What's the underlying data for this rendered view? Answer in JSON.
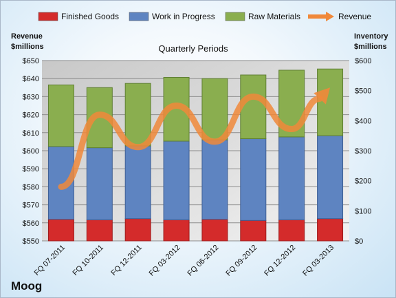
{
  "chart_data": {
    "type": "bar",
    "stacked": true,
    "company": "Moog",
    "subtitle": "Quarterly Periods",
    "categories": [
      "FQ 07-2011",
      "FQ 10-2011",
      "FQ 12-2011",
      "FQ 03-2012",
      "FQ 06-2012",
      "FQ 09-2012",
      "FQ 12-2012",
      "FQ 03-2013"
    ],
    "series": [
      {
        "name": "Finished Goods",
        "axis": "right",
        "color": "#d42b2b",
        "values": [
          72,
          70,
          74,
          70,
          72,
          68,
          70,
          74
        ]
      },
      {
        "name": "Work in Progress",
        "axis": "right",
        "color": "#5e84c1",
        "values": [
          242,
          240,
          242,
          262,
          264,
          272,
          276,
          276
        ]
      },
      {
        "name": "Raw Materials",
        "axis": "right",
        "color": "#8aae4f",
        "values": [
          205,
          200,
          208,
          212,
          204,
          212,
          222,
          222
        ]
      }
    ],
    "line_series": {
      "name": "Revenue",
      "axis": "left",
      "color": "#f0883a",
      "values": [
        580,
        620,
        602,
        625,
        605,
        630,
        612,
        635
      ]
    },
    "left_axis": {
      "label": "Revenue\n$millions",
      "min": 550,
      "max": 650,
      "step": 10,
      "prefix": "$"
    },
    "right_axis": {
      "label": "Inventory\n$millions",
      "min": 0,
      "max": 600,
      "step": 100,
      "prefix": "$"
    },
    "legend": [
      "Finished Goods",
      "Work in Progress",
      "Raw Materials",
      "Revenue"
    ],
    "legend_position": "top",
    "grid": true
  }
}
